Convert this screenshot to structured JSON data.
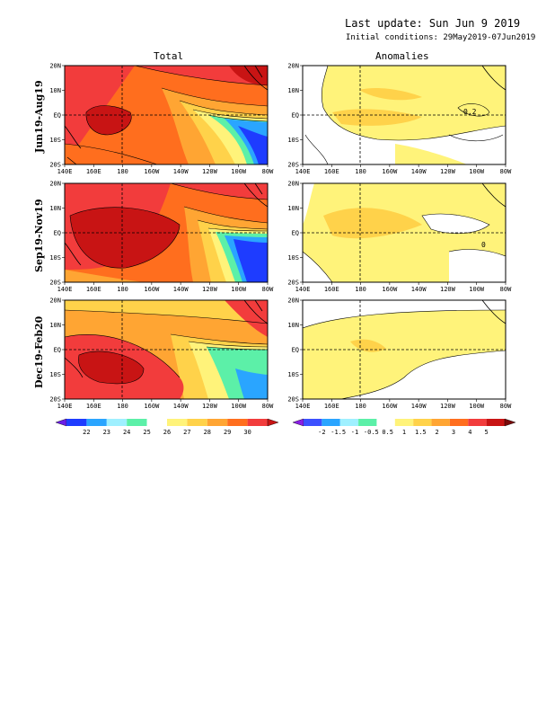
{
  "header": {
    "last_update": "Last update: Sun Jun 9 2019",
    "initial_conditions": "Initial conditions: 29May2019-07Jun2019"
  },
  "columns": [
    "Total",
    "Anomalies"
  ],
  "rows": [
    "Jun19-Aug19",
    "Sep19-Nov19",
    "Dec19-Feb20"
  ],
  "axes": {
    "lon_ticks": [
      "140E",
      "160E",
      "180",
      "160W",
      "140W",
      "120W",
      "100W",
      "80W"
    ],
    "lat_ticks": [
      "20N",
      "10N",
      "EQ",
      "10S",
      "20S"
    ]
  },
  "total_colorbar": {
    "labels": [
      "22",
      "23",
      "24",
      "25",
      "26",
      "27",
      "28",
      "29",
      "30"
    ],
    "colors": [
      "#6a1ee6",
      "#1e3cff",
      "#2aa5ff",
      "#9ff0ff",
      "#5cf0a8",
      "#ffffff",
      "#fff37a",
      "#ffd24a",
      "#ffa533",
      "#ff6e1e",
      "#f23c3c",
      "#c81414"
    ]
  },
  "anom_colorbar": {
    "labels": [
      "-2",
      "-1.5",
      "-1",
      "-0.5",
      "0.5",
      "1",
      "1.5",
      "2",
      "3",
      "4",
      "5"
    ],
    "colors": [
      "#8a1ee6",
      "#3c50ff",
      "#2aa5ff",
      "#9ff0ff",
      "#5cf0a8",
      "#ffffff",
      "#fff37a",
      "#ffd24a",
      "#ffa533",
      "#ff6e1e",
      "#f23c3c",
      "#c81414",
      "#7a0a0a"
    ]
  },
  "panel_annotations": {
    "anom_row1": "0.2",
    "anom_row2": "0"
  }
}
